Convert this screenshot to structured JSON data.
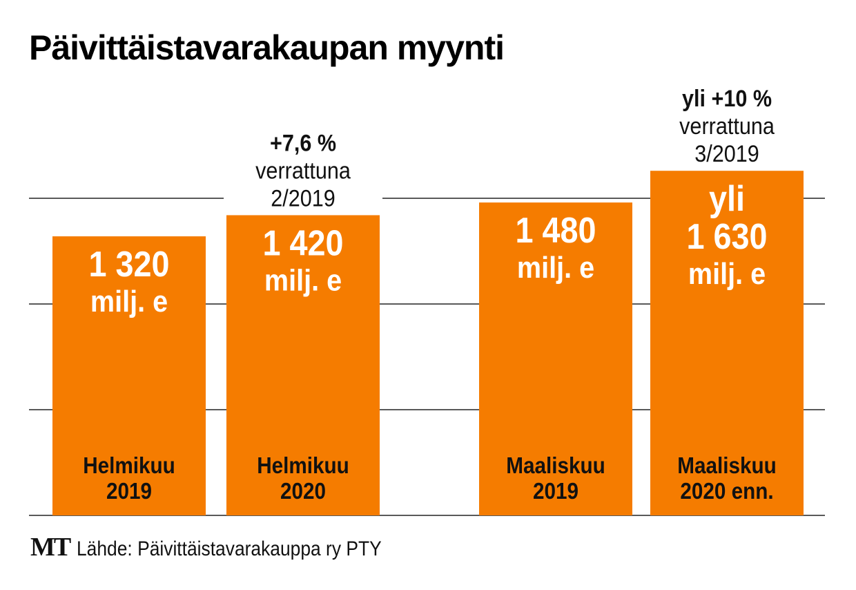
{
  "title": "Päivittäistavarakaupan myynti",
  "source": {
    "logo": "MT",
    "text": "Lähde: Päivittäistavarakauppa ry PTY"
  },
  "colors": {
    "bar": "#f57c00",
    "grid": "#222222",
    "bar_text": "#ffffff",
    "label_text": "#111111"
  },
  "chart_data": {
    "type": "bar",
    "title": "Päivittäistavarakaupan myynti",
    "xlabel": "",
    "ylabel": "milj. e",
    "ylim": [
      0,
      1500
    ],
    "gridlines": [
      0,
      500,
      1000,
      1500
    ],
    "grid": true,
    "categories": [
      "Helmikuu 2019",
      "Helmikuu 2020",
      "Maaliskuu 2019",
      "Maaliskuu 2020 enn."
    ],
    "values": [
      1320,
      1420,
      1480,
      1630
    ],
    "bars": [
      {
        "value_lines": [
          "1 320",
          "milj. e"
        ],
        "category_lines": [
          "Helmikuu",
          "2019"
        ],
        "annotation": []
      },
      {
        "value_lines": [
          "1 420",
          "milj. e"
        ],
        "category_lines": [
          "Helmikuu",
          "2020"
        ],
        "annotation": [
          "+7,6 %",
          "verrattuna",
          "2/2019"
        ]
      },
      {
        "value_lines": [
          "1 480",
          "milj. e"
        ],
        "category_lines": [
          "Maaliskuu",
          "2019"
        ],
        "annotation": []
      },
      {
        "value_lines": [
          "yli",
          "1 630",
          "milj. e"
        ],
        "category_lines": [
          "Maaliskuu",
          "2020 enn."
        ],
        "annotation": [
          "yli +10 %",
          "verrattuna",
          "3/2019"
        ]
      }
    ]
  }
}
